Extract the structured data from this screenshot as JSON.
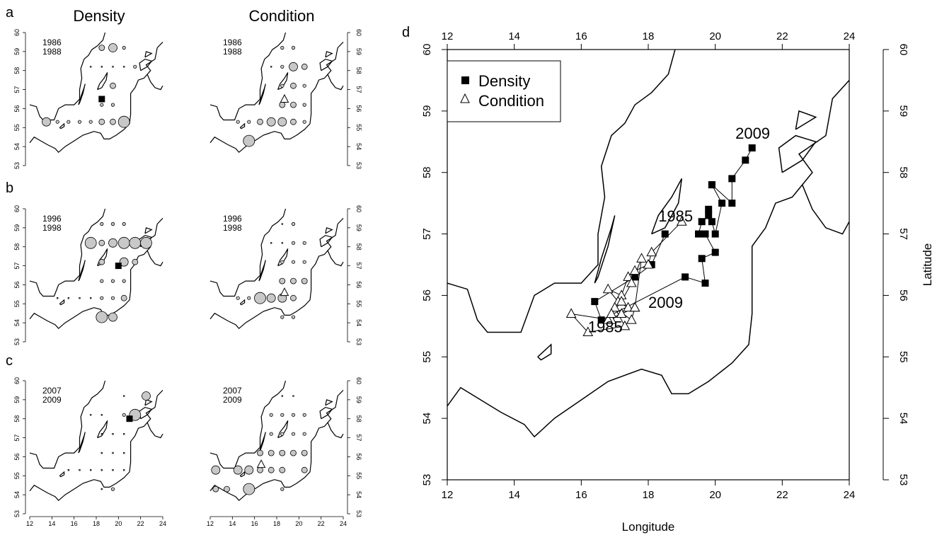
{
  "panel_labels": {
    "a": "a",
    "b": "b",
    "c": "c",
    "d": "d"
  },
  "column_titles": {
    "density": "Density",
    "condition": "Condition"
  },
  "small_axes": {
    "lon_ticks": [
      12,
      14,
      16,
      18,
      20,
      22,
      24
    ],
    "lat_ticks": [
      53,
      54,
      55,
      56,
      57,
      58,
      59,
      60
    ]
  },
  "chart_data": [
    {
      "type": "scatter",
      "panel": "a",
      "variable": "Density",
      "period": [
        "1986",
        "1988"
      ],
      "marker": {
        "lon": 18.5,
        "lat": 56.5
      },
      "points": [
        {
          "lon": 18.5,
          "lat": 59.2,
          "s": 2
        },
        {
          "lon": 19.5,
          "lat": 59.2,
          "s": 3
        },
        {
          "lon": 20.5,
          "lat": 59.2,
          "s": 1
        },
        {
          "lon": 17.5,
          "lat": 58.2,
          "s": 0
        },
        {
          "lon": 18.5,
          "lat": 58.2,
          "s": 0
        },
        {
          "lon": 19.5,
          "lat": 58.2,
          "s": 0
        },
        {
          "lon": 20.5,
          "lat": 58.2,
          "s": 0
        },
        {
          "lon": 21.5,
          "lat": 58.2,
          "s": 1
        },
        {
          "lon": 19.5,
          "lat": 57.2,
          "s": 2
        },
        {
          "lon": 18.5,
          "lat": 56.2,
          "s": 1
        },
        {
          "lon": 19.5,
          "lat": 56.2,
          "s": 1
        },
        {
          "lon": 13.5,
          "lat": 55.3,
          "s": 3
        },
        {
          "lon": 14.5,
          "lat": 55.3,
          "s": 1
        },
        {
          "lon": 15.5,
          "lat": 55.3,
          "s": 1
        },
        {
          "lon": 16.5,
          "lat": 55.3,
          "s": 1
        },
        {
          "lon": 17.5,
          "lat": 55.3,
          "s": 1
        },
        {
          "lon": 18.5,
          "lat": 55.3,
          "s": 2
        },
        {
          "lon": 19.5,
          "lat": 55.3,
          "s": 2
        },
        {
          "lon": 20.5,
          "lat": 55.3,
          "s": 4
        }
      ]
    },
    {
      "type": "scatter",
      "panel": "a",
      "variable": "Condition",
      "period": [
        "1986",
        "1988"
      ],
      "marker": {
        "lon": 18.7,
        "lat": 56.5
      },
      "points": [
        {
          "lon": 18.5,
          "lat": 59.2,
          "s": 1
        },
        {
          "lon": 19.5,
          "lat": 59.2,
          "s": 1
        },
        {
          "lon": 17.5,
          "lat": 58.2,
          "s": 0
        },
        {
          "lon": 18.5,
          "lat": 58.2,
          "s": 1
        },
        {
          "lon": 19.5,
          "lat": 58.2,
          "s": 3
        },
        {
          "lon": 20.5,
          "lat": 58.2,
          "s": 2
        },
        {
          "lon": 18.5,
          "lat": 57.2,
          "s": 1
        },
        {
          "lon": 19.5,
          "lat": 57.2,
          "s": 2
        },
        {
          "lon": 20.5,
          "lat": 57.2,
          "s": 1
        },
        {
          "lon": 18.5,
          "lat": 56.2,
          "s": 2
        },
        {
          "lon": 19.5,
          "lat": 56.2,
          "s": 2
        },
        {
          "lon": 20.5,
          "lat": 56.2,
          "s": 1
        },
        {
          "lon": 14.5,
          "lat": 55.3,
          "s": 1
        },
        {
          "lon": 15.5,
          "lat": 55.3,
          "s": 1
        },
        {
          "lon": 16.5,
          "lat": 55.3,
          "s": 2
        },
        {
          "lon": 17.5,
          "lat": 55.3,
          "s": 3
        },
        {
          "lon": 18.5,
          "lat": 55.3,
          "s": 3
        },
        {
          "lon": 19.5,
          "lat": 55.3,
          "s": 2
        },
        {
          "lon": 20.5,
          "lat": 55.3,
          "s": 1
        },
        {
          "lon": 15.5,
          "lat": 54.3,
          "s": 4
        }
      ]
    },
    {
      "type": "scatter",
      "panel": "b",
      "variable": "Density",
      "period": [
        "1996",
        "1998"
      ],
      "marker": {
        "lon": 20.0,
        "lat": 57.0
      },
      "points": [
        {
          "lon": 18.5,
          "lat": 59.2,
          "s": 1
        },
        {
          "lon": 19.5,
          "lat": 59.2,
          "s": 1
        },
        {
          "lon": 20.5,
          "lat": 59.2,
          "s": 1
        },
        {
          "lon": 17.5,
          "lat": 58.2,
          "s": 4
        },
        {
          "lon": 18.5,
          "lat": 58.2,
          "s": 2
        },
        {
          "lon": 19.5,
          "lat": 58.2,
          "s": 3
        },
        {
          "lon": 20.5,
          "lat": 58.2,
          "s": 4
        },
        {
          "lon": 21.5,
          "lat": 58.2,
          "s": 4
        },
        {
          "lon": 22.5,
          "lat": 58.2,
          "s": 4
        },
        {
          "lon": 18.5,
          "lat": 57.2,
          "s": 2
        },
        {
          "lon": 20.5,
          "lat": 57.2,
          "s": 3
        },
        {
          "lon": 21.5,
          "lat": 57.2,
          "s": 2
        },
        {
          "lon": 18.5,
          "lat": 56.2,
          "s": 1
        },
        {
          "lon": 19.5,
          "lat": 56.2,
          "s": 1
        },
        {
          "lon": 20.5,
          "lat": 56.2,
          "s": 1
        },
        {
          "lon": 14.5,
          "lat": 55.3,
          "s": 0
        },
        {
          "lon": 15.5,
          "lat": 55.3,
          "s": 0
        },
        {
          "lon": 16.5,
          "lat": 55.3,
          "s": 0
        },
        {
          "lon": 17.5,
          "lat": 55.3,
          "s": 0
        },
        {
          "lon": 18.5,
          "lat": 55.3,
          "s": 1
        },
        {
          "lon": 19.5,
          "lat": 55.3,
          "s": 1
        },
        {
          "lon": 20.5,
          "lat": 55.3,
          "s": 2
        },
        {
          "lon": 18.5,
          "lat": 54.3,
          "s": 4
        },
        {
          "lon": 19.5,
          "lat": 54.3,
          "s": 3
        }
      ]
    },
    {
      "type": "scatter",
      "panel": "b",
      "variable": "Condition",
      "period": [
        "1996",
        "1998"
      ],
      "marker": {
        "lon": 18.7,
        "lat": 55.6
      },
      "points": [
        {
          "lon": 18.5,
          "lat": 59.2,
          "s": 0
        },
        {
          "lon": 19.5,
          "lat": 59.2,
          "s": 1
        },
        {
          "lon": 17.5,
          "lat": 58.2,
          "s": 0
        },
        {
          "lon": 18.5,
          "lat": 58.2,
          "s": 0
        },
        {
          "lon": 19.5,
          "lat": 58.2,
          "s": 1
        },
        {
          "lon": 20.5,
          "lat": 58.2,
          "s": 1
        },
        {
          "lon": 18.5,
          "lat": 57.2,
          "s": 1
        },
        {
          "lon": 19.5,
          "lat": 57.2,
          "s": 1
        },
        {
          "lon": 20.5,
          "lat": 57.2,
          "s": 1
        },
        {
          "lon": 18.5,
          "lat": 56.2,
          "s": 2
        },
        {
          "lon": 19.5,
          "lat": 56.2,
          "s": 2
        },
        {
          "lon": 20.5,
          "lat": 56.2,
          "s": 2
        },
        {
          "lon": 14.5,
          "lat": 55.3,
          "s": 1
        },
        {
          "lon": 15.5,
          "lat": 55.3,
          "s": 1
        },
        {
          "lon": 16.5,
          "lat": 55.3,
          "s": 4
        },
        {
          "lon": 17.5,
          "lat": 55.3,
          "s": 3
        },
        {
          "lon": 18.5,
          "lat": 55.3,
          "s": 3
        },
        {
          "lon": 19.5,
          "lat": 55.3,
          "s": 2
        },
        {
          "lon": 18.5,
          "lat": 54.3,
          "s": 1
        },
        {
          "lon": 19.5,
          "lat": 54.3,
          "s": 1
        }
      ]
    },
    {
      "type": "scatter",
      "panel": "c",
      "variable": "Density",
      "period": [
        "2007",
        "2009"
      ],
      "marker": {
        "lon": 21.0,
        "lat": 58.0
      },
      "points": [
        {
          "lon": 20.5,
          "lat": 59.2,
          "s": 0
        },
        {
          "lon": 22.5,
          "lat": 59.2,
          "s": 3
        },
        {
          "lon": 17.5,
          "lat": 58.2,
          "s": 0
        },
        {
          "lon": 18.5,
          "lat": 58.2,
          "s": 0
        },
        {
          "lon": 20.5,
          "lat": 58.2,
          "s": 1
        },
        {
          "lon": 21.5,
          "lat": 58.2,
          "s": 4
        },
        {
          "lon": 18.5,
          "lat": 57.2,
          "s": 0
        },
        {
          "lon": 19.5,
          "lat": 57.2,
          "s": 0
        },
        {
          "lon": 20.5,
          "lat": 57.2,
          "s": 0
        },
        {
          "lon": 18.5,
          "lat": 56.2,
          "s": 0
        },
        {
          "lon": 19.5,
          "lat": 56.2,
          "s": 0
        },
        {
          "lon": 20.5,
          "lat": 56.2,
          "s": 0
        },
        {
          "lon": 15.5,
          "lat": 55.3,
          "s": 0
        },
        {
          "lon": 16.5,
          "lat": 55.3,
          "s": 0
        },
        {
          "lon": 17.5,
          "lat": 55.3,
          "s": 0
        },
        {
          "lon": 18.5,
          "lat": 55.3,
          "s": 0
        },
        {
          "lon": 19.5,
          "lat": 55.3,
          "s": 0
        },
        {
          "lon": 20.5,
          "lat": 55.3,
          "s": 0
        },
        {
          "lon": 18.5,
          "lat": 54.3,
          "s": 0
        },
        {
          "lon": 19.5,
          "lat": 54.3,
          "s": 1
        }
      ]
    },
    {
      "type": "scatter",
      "panel": "c",
      "variable": "Condition",
      "period": [
        "2007",
        "2009"
      ],
      "marker": {
        "lon": 16.6,
        "lat": 55.6
      },
      "points": [
        {
          "lon": 18.5,
          "lat": 59.2,
          "s": 0
        },
        {
          "lon": 19.5,
          "lat": 59.2,
          "s": 0
        },
        {
          "lon": 17.5,
          "lat": 58.2,
          "s": 1
        },
        {
          "lon": 18.5,
          "lat": 58.2,
          "s": 1
        },
        {
          "lon": 19.5,
          "lat": 58.2,
          "s": 1
        },
        {
          "lon": 20.5,
          "lat": 58.2,
          "s": 1
        },
        {
          "lon": 17.5,
          "lat": 57.2,
          "s": 1
        },
        {
          "lon": 18.5,
          "lat": 57.2,
          "s": 1
        },
        {
          "lon": 19.5,
          "lat": 57.2,
          "s": 1
        },
        {
          "lon": 20.5,
          "lat": 57.2,
          "s": 1
        },
        {
          "lon": 16.5,
          "lat": 56.2,
          "s": 2
        },
        {
          "lon": 17.5,
          "lat": 56.2,
          "s": 2
        },
        {
          "lon": 18.5,
          "lat": 56.2,
          "s": 2
        },
        {
          "lon": 19.5,
          "lat": 56.2,
          "s": 2
        },
        {
          "lon": 20.5,
          "lat": 56.2,
          "s": 2
        },
        {
          "lon": 12.5,
          "lat": 55.3,
          "s": 3
        },
        {
          "lon": 14.5,
          "lat": 55.3,
          "s": 3
        },
        {
          "lon": 15.5,
          "lat": 55.3,
          "s": 3
        },
        {
          "lon": 16.5,
          "lat": 55.3,
          "s": 2
        },
        {
          "lon": 17.5,
          "lat": 55.3,
          "s": 2
        },
        {
          "lon": 18.5,
          "lat": 55.3,
          "s": 2
        },
        {
          "lon": 20.5,
          "lat": 55.3,
          "s": 2
        },
        {
          "lon": 12.5,
          "lat": 54.3,
          "s": 2
        },
        {
          "lon": 13.5,
          "lat": 54.3,
          "s": 2
        },
        {
          "lon": 15.5,
          "lat": 54.3,
          "s": 4
        },
        {
          "lon": 18.5,
          "lat": 54.3,
          "s": 1
        }
      ]
    },
    {
      "type": "line",
      "panel": "d",
      "xlabel": "Longitude",
      "ylabel": "Latitude",
      "xlim": [
        12,
        24
      ],
      "ylim": [
        53,
        60
      ],
      "xticks": [
        12,
        14,
        16,
        18,
        20,
        22,
        24
      ],
      "yticks": [
        53,
        54,
        55,
        56,
        57,
        58,
        59,
        60
      ],
      "legend": "top-left",
      "series": [
        {
          "name": "Density",
          "marker": "filled-square",
          "points": [
            [
              18.5,
              57.0
            ],
            [
              18.1,
              56.5
            ],
            [
              17.6,
              56.3
            ],
            [
              16.4,
              55.9
            ],
            [
              16.6,
              55.6
            ],
            [
              19.1,
              56.3
            ],
            [
              19.7,
              56.2
            ],
            [
              19.6,
              56.6
            ],
            [
              20.0,
              56.7
            ],
            [
              19.7,
              57.0
            ],
            [
              19.5,
              57.0
            ],
            [
              19.6,
              57.2
            ],
            [
              19.8,
              57.3
            ],
            [
              19.8,
              57.4
            ],
            [
              19.9,
              57.2
            ],
            [
              20.0,
              57.0
            ],
            [
              20.2,
              57.5
            ],
            [
              19.9,
              57.8
            ],
            [
              19.9,
              57.8
            ],
            [
              20.5,
              57.5
            ],
            [
              20.5,
              57.9
            ],
            [
              20.9,
              58.2
            ],
            [
              21.1,
              58.4
            ]
          ],
          "labels": [
            {
              "text": "1985",
              "x": 18.3,
              "y": 57.2
            },
            {
              "text": "2009",
              "x": 20.6,
              "y": 58.55
            }
          ]
        },
        {
          "name": "Condition",
          "marker": "open-triangle",
          "points": [
            [
              19.0,
              57.2
            ],
            [
              18.1,
              56.7
            ],
            [
              18.0,
              56.5
            ],
            [
              17.6,
              56.4
            ],
            [
              17.4,
              56.3
            ],
            [
              17.2,
              56.0
            ],
            [
              16.8,
              56.1
            ],
            [
              17.1,
              55.9
            ],
            [
              17.4,
              55.8
            ],
            [
              16.9,
              55.6
            ],
            [
              15.7,
              55.7
            ],
            [
              16.2,
              55.4
            ],
            [
              17.3,
              55.5
            ],
            [
              17.0,
              55.8
            ],
            [
              17.5,
              55.6
            ],
            [
              17.6,
              55.8
            ],
            [
              17.2,
              55.7
            ],
            [
              16.8,
              55.6
            ],
            [
              16.9,
              55.7
            ],
            [
              17.2,
              55.9
            ],
            [
              17.5,
              56.2
            ],
            [
              17.8,
              56.6
            ],
            [
              17.6,
              55.8
            ]
          ],
          "labels": [
            {
              "text": "1985",
              "x": 16.2,
              "y": 55.4
            },
            {
              "text": "2009",
              "x": 18.0,
              "y": 55.8
            }
          ]
        }
      ]
    }
  ]
}
